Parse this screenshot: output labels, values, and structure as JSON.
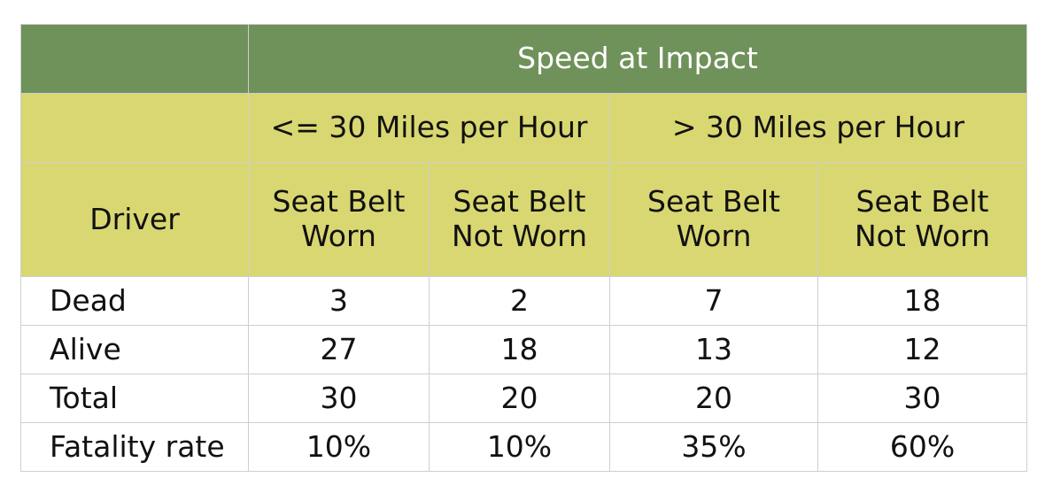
{
  "chart_data": {
    "type": "table",
    "title": "Speed at Impact",
    "speed_groups": [
      "<= 30 Miles per Hour",
      "> 30 Miles per Hour"
    ],
    "row_header": "Driver",
    "columns": [
      {
        "line1": "Seat Belt",
        "line2": "Worn"
      },
      {
        "line1": "Seat Belt",
        "line2": "Not Worn"
      },
      {
        "line1": "Seat Belt",
        "line2": "Worn"
      },
      {
        "line1": "Seat Belt",
        "line2": "Not Worn"
      }
    ],
    "rows": [
      {
        "label": "Dead",
        "values": [
          "3",
          "2",
          "7",
          "18"
        ]
      },
      {
        "label": "Alive",
        "values": [
          "27",
          "18",
          "13",
          "12"
        ]
      },
      {
        "label": "Total",
        "values": [
          "30",
          "20",
          "20",
          "30"
        ]
      },
      {
        "label": "Fatality rate",
        "values": [
          "10%",
          "10%",
          "35%",
          "60%"
        ]
      }
    ],
    "colors": {
      "title_band": "#6f915a",
      "header_band": "#d9d771",
      "grid": "#cfcfcf"
    }
  }
}
